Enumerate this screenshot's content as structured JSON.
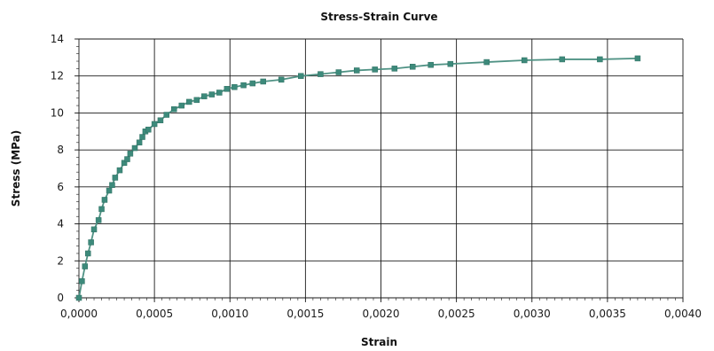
{
  "chart_data": {
    "type": "scatter",
    "title": "Stress-Strain Curve",
    "xlabel": "Strain",
    "ylabel": "Stress (MPa)",
    "xlim": [
      0,
      0.004
    ],
    "ylim": [
      0,
      14
    ],
    "x_ticks": [
      0,
      0.0005,
      0.001,
      0.0015,
      0.002,
      0.0025,
      0.003,
      0.0035,
      0.004
    ],
    "x_tick_labels": [
      "0,0000",
      "0,0005",
      "0,0010",
      "0,0015",
      "0,0020",
      "0,0025",
      "0,0030",
      "0,0035",
      "0,0040"
    ],
    "y_ticks": [
      0,
      2,
      4,
      6,
      8,
      10,
      12,
      14
    ],
    "y_tick_labels": [
      "0",
      "2",
      "4",
      "6",
      "8",
      "10",
      "12",
      "14"
    ],
    "grid": true,
    "series_color": "#4f9284",
    "marker_color": "#3d8a7b",
    "series": [
      {
        "x": [
          0,
          2e-05,
          4e-05,
          6e-05,
          8e-05,
          0.0001,
          0.00013,
          0.00015,
          0.00017,
          0.0002,
          0.00022,
          0.00024,
          0.00027,
          0.0003,
          0.00032,
          0.00034,
          0.00037,
          0.0004,
          0.00042,
          0.00044,
          0.00046,
          0.0005,
          0.00054,
          0.00058,
          0.00063,
          0.00068,
          0.00073,
          0.00078,
          0.00083,
          0.00088,
          0.00093,
          0.00098,
          0.00103,
          0.00109,
          0.00115,
          0.00122,
          0.00134,
          0.00147,
          0.0016,
          0.00172,
          0.00184,
          0.00196,
          0.00209,
          0.00221,
          0.00233,
          0.00246,
          0.0027,
          0.00295,
          0.0032,
          0.00345,
          0.0037
        ],
        "y": [
          0,
          0.9,
          1.7,
          2.4,
          3.0,
          3.7,
          4.2,
          4.8,
          5.3,
          5.8,
          6.1,
          6.5,
          6.9,
          7.3,
          7.5,
          7.8,
          8.1,
          8.4,
          8.7,
          9.0,
          9.1,
          9.4,
          9.6,
          9.9,
          10.2,
          10.4,
          10.6,
          10.7,
          10.9,
          11.0,
          11.1,
          11.3,
          11.4,
          11.5,
          11.6,
          11.7,
          11.8,
          12.0,
          12.1,
          12.2,
          12.3,
          12.35,
          12.4,
          12.5,
          12.6,
          12.65,
          12.75,
          12.85,
          12.9,
          12.9,
          12.95
        ]
      }
    ]
  }
}
